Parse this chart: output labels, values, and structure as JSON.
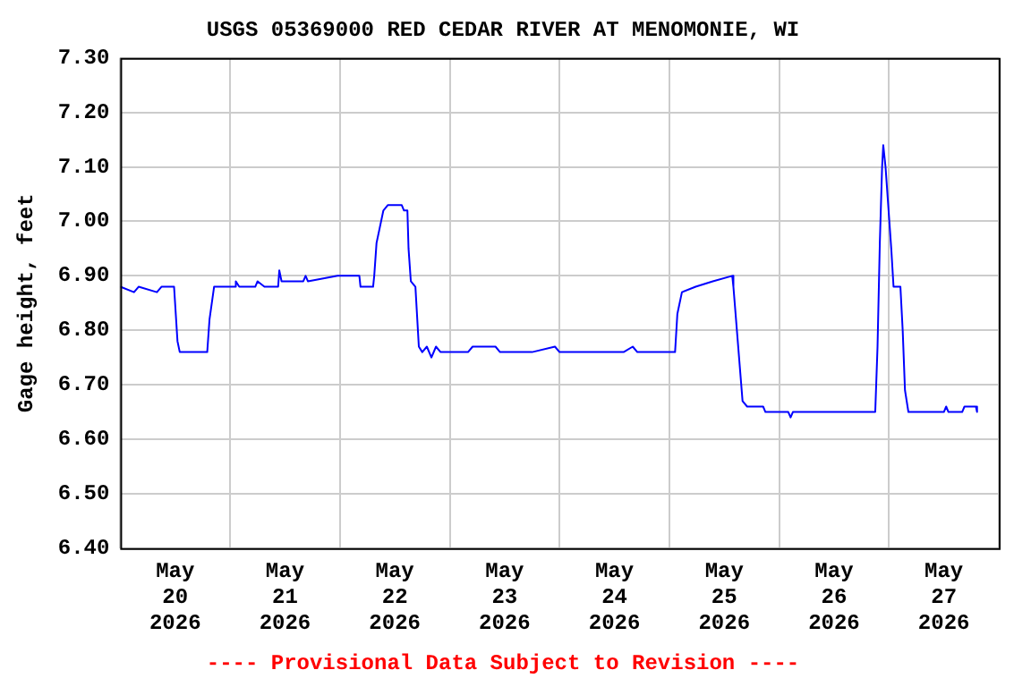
{
  "chart_data": {
    "type": "line",
    "title": "USGS 05369000 RED CEDAR RIVER AT MENOMONIE, WI",
    "ylabel": "Gage height, feet",
    "annotations": [
      "---- Provisional Data Subject to Revision ----"
    ],
    "x": [
      "2026-05-20T00:00",
      "2026-05-20T03:00",
      "2026-05-20T04:00",
      "2026-05-20T08:00",
      "2026-05-20T09:00",
      "2026-05-20T11:45",
      "2026-05-20T12:30",
      "2026-05-20T13:00",
      "2026-05-20T19:00",
      "2026-05-20T19:30",
      "2026-05-20T20:30",
      "2026-05-21T01:00",
      "2026-05-21T01:15",
      "2026-05-21T02:00",
      "2026-05-21T05:30",
      "2026-05-21T06:00",
      "2026-05-21T07:30",
      "2026-05-21T10:30",
      "2026-05-21T10:45",
      "2026-05-21T11:15",
      "2026-05-21T16:00",
      "2026-05-21T16:30",
      "2026-05-21T17:00",
      "2026-05-21T23:30",
      "2026-05-22T04:15",
      "2026-05-22T04:30",
      "2026-05-22T07:15",
      "2026-05-22T07:30",
      "2026-05-22T08:00",
      "2026-05-22T09:30",
      "2026-05-22T10:30",
      "2026-05-22T13:30",
      "2026-05-22T14:00",
      "2026-05-22T14:45",
      "2026-05-22T15:00",
      "2026-05-22T15:30",
      "2026-05-22T16:30",
      "2026-05-22T17:15",
      "2026-05-22T18:00",
      "2026-05-22T19:00",
      "2026-05-22T20:00",
      "2026-05-22T21:00",
      "2026-05-22T22:00",
      "2026-05-23T04:00",
      "2026-05-23T05:00",
      "2026-05-23T10:00",
      "2026-05-23T11:00",
      "2026-05-23T18:00",
      "2026-05-23T23:00",
      "2026-05-24T00:00",
      "2026-05-24T14:00",
      "2026-05-24T16:00",
      "2026-05-24T17:00",
      "2026-05-25T01:15",
      "2026-05-25T01:45",
      "2026-05-25T02:45",
      "2026-05-25T05:45",
      "2026-05-25T09:30",
      "2026-05-25T13:45",
      "2026-05-25T14:00",
      "2026-05-25T16:00",
      "2026-05-25T17:00",
      "2026-05-25T20:30",
      "2026-05-25T21:00",
      "2026-05-26T02:00",
      "2026-05-26T02:30",
      "2026-05-26T03:00",
      "2026-05-26T21:00",
      "2026-05-26T21:30",
      "2026-05-26T22:00",
      "2026-05-26T22:30",
      "2026-05-26T22:45",
      "2026-05-26T23:15",
      "2026-05-26T23:45",
      "2026-05-27T00:30",
      "2026-05-27T01:00",
      "2026-05-27T02:30",
      "2026-05-27T03:00",
      "2026-05-27T03:30",
      "2026-05-27T04:15",
      "2026-05-27T12:00",
      "2026-05-27T12:30",
      "2026-05-27T13:00",
      "2026-05-27T16:00",
      "2026-05-27T16:30",
      "2026-05-27T19:00",
      "2026-05-27T19:15"
    ],
    "series": [
      {
        "color": "#0000ff",
        "values": [
          6.88,
          6.87,
          6.88,
          6.87,
          6.88,
          6.88,
          6.78,
          6.76,
          6.76,
          6.82,
          6.88,
          6.88,
          6.89,
          6.88,
          6.88,
          6.89,
          6.88,
          6.88,
          6.91,
          6.89,
          6.89,
          6.9,
          6.89,
          6.9,
          6.9,
          6.88,
          6.88,
          6.9,
          6.96,
          7.02,
          7.03,
          7.03,
          7.02,
          7.02,
          6.95,
          6.89,
          6.88,
          6.77,
          6.76,
          6.77,
          6.75,
          6.77,
          6.76,
          6.76,
          6.77,
          6.77,
          6.76,
          6.76,
          6.77,
          6.76,
          6.76,
          6.77,
          6.76,
          6.76,
          6.83,
          6.87,
          6.88,
          6.89,
          6.9,
          6.88,
          6.67,
          6.66,
          6.66,
          6.65,
          6.65,
          6.64,
          6.65,
          6.65,
          6.77,
          6.96,
          7.1,
          7.14,
          7.1,
          7.04,
          6.95,
          6.88,
          6.88,
          6.8,
          6.69,
          6.65,
          6.65,
          6.66,
          6.65,
          6.65,
          6.66,
          6.66,
          6.65
        ]
      }
    ],
    "xlim": [
      "2026-05-20T00:00",
      "2026-05-28T00:00"
    ],
    "xticks": [
      {
        "value": "2026-05-20T00:00",
        "label": null
      },
      {
        "value": "2026-05-20T12:00",
        "label": "May 20 2026"
      },
      {
        "value": "2026-05-21T00:00",
        "label": null
      },
      {
        "value": "2026-05-21T12:00",
        "label": "May 21 2026"
      },
      {
        "value": "2026-05-22T00:00",
        "label": null
      },
      {
        "value": "2026-05-22T12:00",
        "label": "May 22 2026"
      },
      {
        "value": "2026-05-23T00:00",
        "label": null
      },
      {
        "value": "2026-05-23T12:00",
        "label": "May 23 2026"
      },
      {
        "value": "2026-05-24T00:00",
        "label": null
      },
      {
        "value": "2026-05-24T12:00",
        "label": "May 24 2026"
      },
      {
        "value": "2026-05-25T00:00",
        "label": null
      },
      {
        "value": "2026-05-25T12:00",
        "label": "May 25 2026"
      },
      {
        "value": "2026-05-26T00:00",
        "label": null
      },
      {
        "value": "2026-05-26T12:00",
        "label": "May 26 2026"
      },
      {
        "value": "2026-05-27T00:00",
        "label": null
      },
      {
        "value": "2026-05-27T12:00",
        "label": "May 27 2026"
      },
      {
        "value": "2026-05-28T00:00",
        "label": null
      }
    ],
    "ylim": [
      6.4,
      7.3
    ],
    "yticks": [
      {
        "value": 6.4,
        "label": "6.40"
      },
      {
        "value": 6.5,
        "label": "6.50"
      },
      {
        "value": 6.6,
        "label": "6.60"
      },
      {
        "value": 6.7,
        "label": "6.70"
      },
      {
        "value": 6.8,
        "label": "6.80"
      },
      {
        "value": 6.9,
        "label": "6.90"
      },
      {
        "value": 7.0,
        "label": "7.00"
      },
      {
        "value": 7.1,
        "label": "7.10"
      },
      {
        "value": 7.2,
        "label": "7.20"
      },
      {
        "value": 7.3,
        "label": "7.30"
      }
    ],
    "grid": true,
    "legend": false,
    "marker": "none",
    "line_style": "solid"
  }
}
